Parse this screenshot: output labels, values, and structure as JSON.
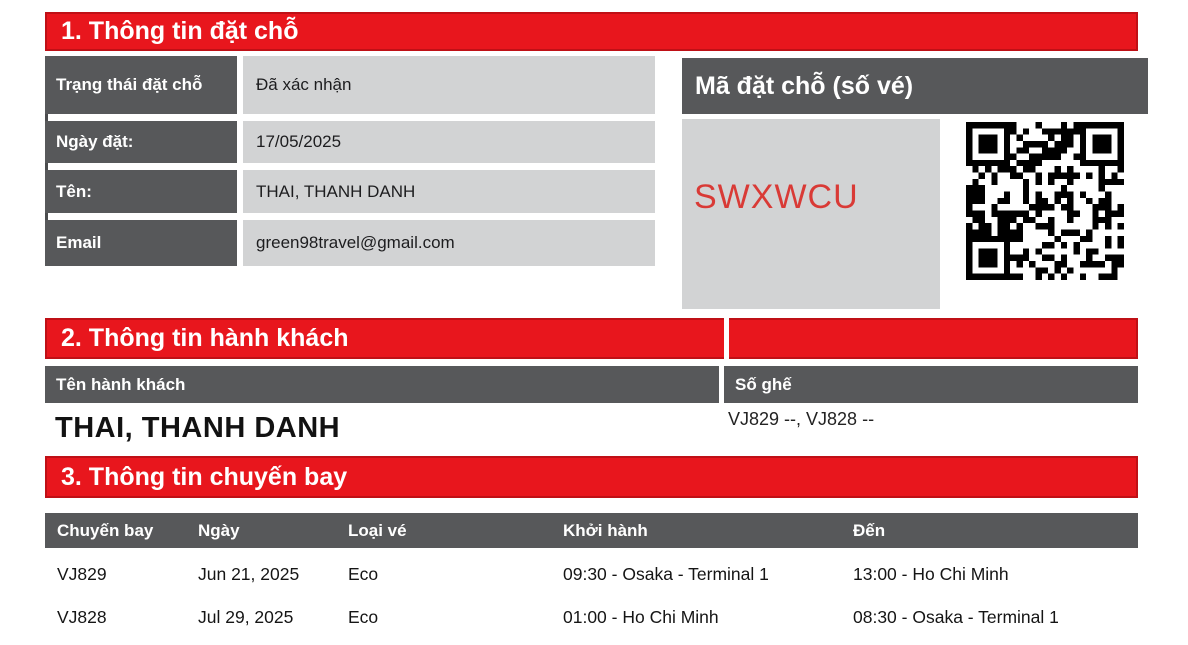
{
  "theme": {
    "red": "#e8161d",
    "red_border": "#bf1016",
    "dark_gray": "#57585a",
    "light_gray": "#d2d3d4",
    "code_red": "#d93a36"
  },
  "section1": {
    "title": "1. Thông tin đặt chỗ",
    "fields": [
      {
        "label": "Trạng thái đặt chỗ",
        "value": "Đã xác nhận"
      },
      {
        "label": "Ngày đặt:",
        "value": "17/05/2025"
      },
      {
        "label": "Tên:",
        "value": "THAI, THANH DANH"
      },
      {
        "label": "Email",
        "value": "green98travel@gmail.com"
      }
    ],
    "booking_code_panel": {
      "title": "Mã đặt chỗ (số vé)",
      "code": "SWXWCU"
    }
  },
  "section2": {
    "title": "2. Thông tin hành khách",
    "columns": {
      "name": "Tên hành khách",
      "seat": "Số ghế"
    },
    "passenger": {
      "name": "THAI, THANH DANH",
      "seats": "VJ829 --, VJ828 --"
    }
  },
  "section3": {
    "title": "3. Thông tin chuyến bay",
    "columns": [
      "Chuyến bay",
      "Ngày",
      "Loại vé",
      "Khởi hành",
      "Đến"
    ],
    "flights": [
      {
        "flight": "VJ829",
        "date": "Jun 21, 2025",
        "fare": "Eco",
        "departure": "09:30 - Osaka - Terminal 1",
        "arrival": "13:00 - Ho Chi Minh"
      },
      {
        "flight": "VJ828",
        "date": "Jul 29, 2025",
        "fare": "Eco",
        "departure": "01:00 - Ho Chi Minh",
        "arrival": "08:30 - Osaka - Terminal 1"
      }
    ]
  }
}
